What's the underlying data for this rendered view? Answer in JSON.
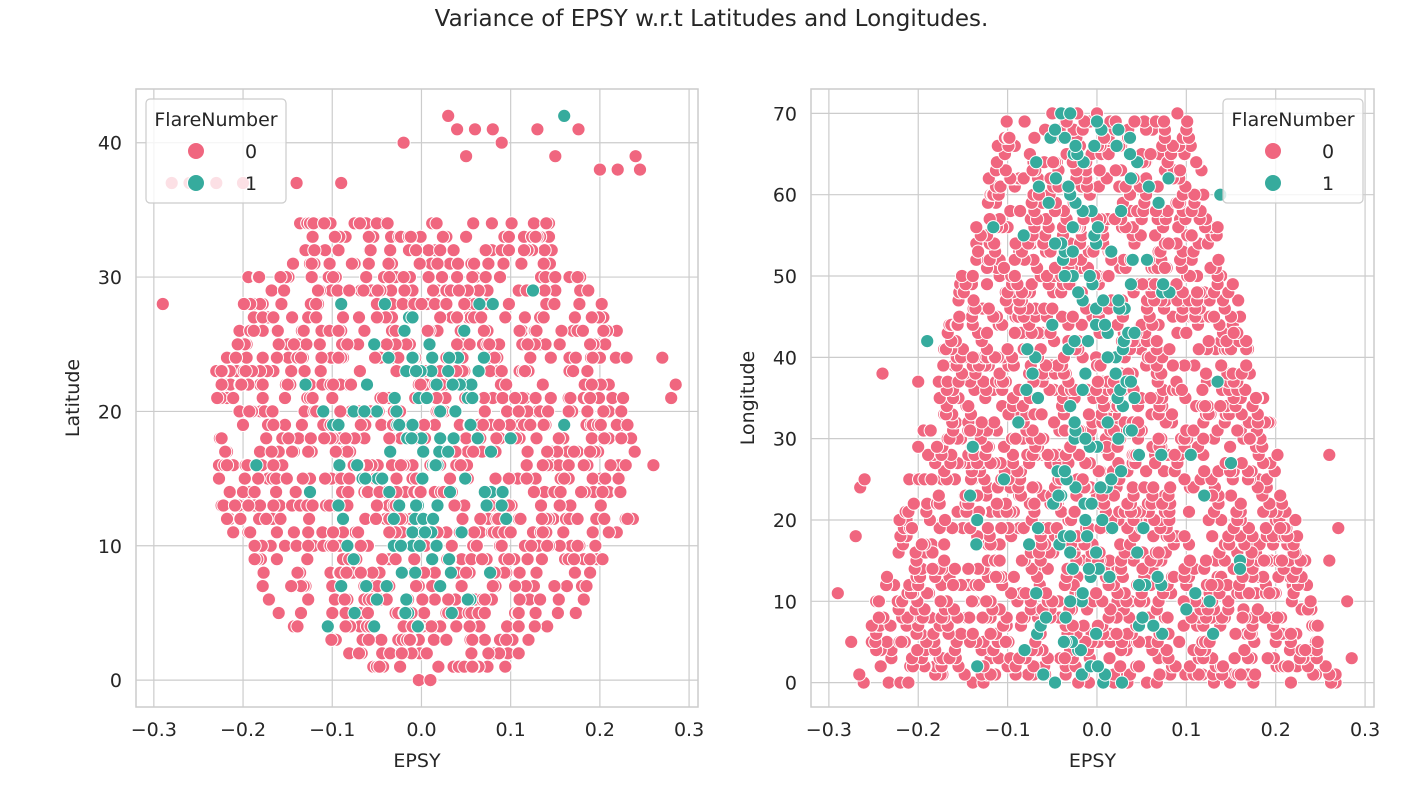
{
  "figure": {
    "title": "Variance of EPSY w.r.t Latitudes and Longitudes."
  },
  "colors": {
    "flare_0": "#f0667f",
    "flare_1": "#36ab9d",
    "grid": "#cccccc",
    "axis_text": "#262626",
    "marker_edge": "#ffffff"
  },
  "chart_data": [
    {
      "type": "scatter",
      "title": "",
      "xlabel": "EPSY",
      "ylabel": "Latitude",
      "xlim": [
        -0.32,
        0.31
      ],
      "ylim": [
        -2,
        44
      ],
      "xticks": [
        -0.3,
        -0.2,
        -0.1,
        0.0,
        0.1,
        0.2,
        0.3
      ],
      "xtick_labels": [
        "−0.3",
        "−0.2",
        "−0.1",
        "0.0",
        "0.1",
        "0.2",
        "0.3"
      ],
      "yticks": [
        0,
        10,
        20,
        30,
        40
      ],
      "ytick_labels": [
        "0",
        "10",
        "20",
        "30",
        "40"
      ],
      "grid": true,
      "legend": {
        "title": "FlareNumber",
        "placement": "upper-left",
        "entries": [
          {
            "label": "0",
            "color": "#f0667f"
          },
          {
            "label": "1",
            "color": "#36ab9d"
          }
        ]
      },
      "series": [
        {
          "name": "0",
          "color": "#f0667f",
          "points": []
        },
        {
          "name": "1",
          "color": "#36ab9d",
          "points": []
        }
      ],
      "outlier_points_0": [
        [
          -0.29,
          28
        ],
        [
          -0.28,
          37
        ],
        [
          -0.26,
          37
        ],
        [
          -0.23,
          37
        ],
        [
          -0.2,
          37
        ],
        [
          -0.14,
          37
        ],
        [
          -0.09,
          37
        ],
        [
          -0.02,
          40
        ],
        [
          0.03,
          42
        ],
        [
          0.04,
          41
        ],
        [
          0.05,
          39
        ],
        [
          0.06,
          41
        ],
        [
          0.08,
          41
        ],
        [
          0.09,
          40
        ],
        [
          0.13,
          41
        ],
        [
          0.15,
          39
        ],
        [
          0.176,
          41
        ],
        [
          0.2,
          38
        ],
        [
          0.22,
          38
        ],
        [
          0.24,
          39
        ],
        [
          0.245,
          38
        ],
        [
          0.27,
          24
        ],
        [
          0.28,
          21
        ],
        [
          0.285,
          22
        ],
        [
          0.26,
          16
        ]
      ],
      "outlier_points_1": [
        [
          0.16,
          42
        ],
        [
          0.125,
          29
        ]
      ]
    },
    {
      "type": "scatter",
      "title": "",
      "xlabel": "EPSY",
      "ylabel": "Longitude",
      "xlim": [
        -0.32,
        0.31
      ],
      "ylim": [
        -3,
        73
      ],
      "xticks": [
        -0.3,
        -0.2,
        -0.1,
        0.0,
        0.1,
        0.2,
        0.3
      ],
      "xtick_labels": [
        "−0.3",
        "−0.2",
        "−0.1",
        "0.0",
        "0.1",
        "0.2",
        "0.3"
      ],
      "yticks": [
        0,
        10,
        20,
        30,
        40,
        50,
        60,
        70
      ],
      "ytick_labels": [
        "0",
        "10",
        "20",
        "30",
        "40",
        "50",
        "60",
        "70"
      ],
      "grid": true,
      "legend": {
        "title": "FlareNumber",
        "placement": "upper-right",
        "entries": [
          {
            "label": "0",
            "color": "#f0667f"
          },
          {
            "label": "1",
            "color": "#36ab9d"
          }
        ]
      },
      "series": [
        {
          "name": "0",
          "color": "#f0667f",
          "points": []
        },
        {
          "name": "1",
          "color": "#36ab9d",
          "points": []
        }
      ],
      "outlier_points_0": [
        [
          -0.29,
          11
        ],
        [
          -0.275,
          5
        ],
        [
          -0.27,
          18
        ],
        [
          -0.265,
          24
        ],
        [
          -0.26,
          25
        ],
        [
          -0.24,
          38
        ],
        [
          -0.2,
          37
        ],
        [
          0.28,
          10
        ],
        [
          0.285,
          3
        ],
        [
          0.26,
          28
        ],
        [
          0.27,
          19
        ],
        [
          0.26,
          15
        ],
        [
          0.09,
          70
        ],
        [
          0.075,
          69
        ],
        [
          -0.05,
          70
        ],
        [
          0.0,
          70
        ]
      ],
      "outlier_points_1": [
        [
          -0.19,
          42
        ],
        [
          -0.04,
          70
        ],
        [
          -0.03,
          70
        ],
        [
          0.0,
          69
        ]
      ]
    }
  ]
}
